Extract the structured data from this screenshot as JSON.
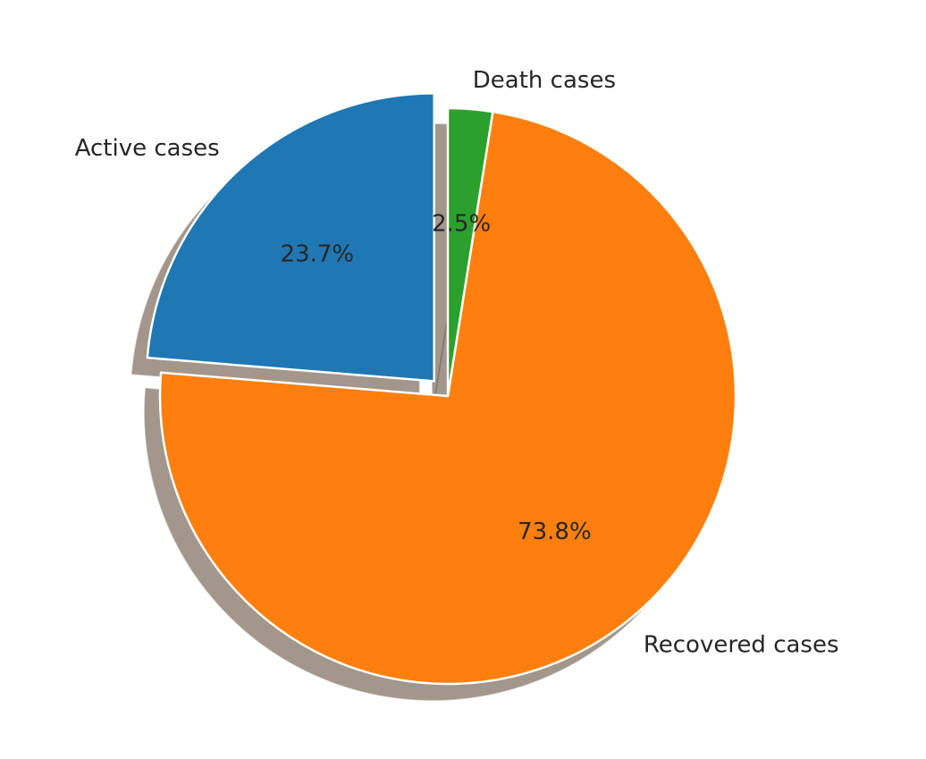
{
  "chart_data": {
    "type": "pie",
    "categories": [
      "Active cases",
      "Recovered cases",
      "Death cases"
    ],
    "percent_labels": [
      "23.7%",
      "73.8%",
      "2.5%"
    ],
    "values": [
      23.7,
      73.8,
      2.5
    ],
    "colors": [
      "#1f77b4",
      "#ff7f0e",
      "#2ca02c"
    ],
    "exploded": [
      "Active cases"
    ],
    "shadow": true,
    "start_angle_deg": 90,
    "direction": "counterclockwise"
  }
}
